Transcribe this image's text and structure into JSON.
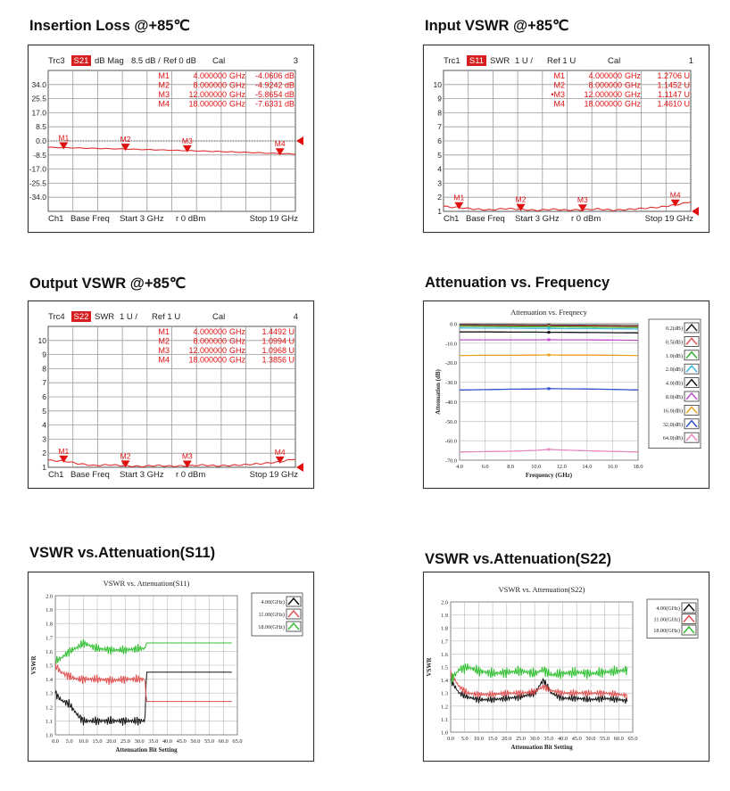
{
  "titles": {
    "insertion_loss": "Insertion Loss @+85℃",
    "input_vswr": "Input VSWR @+85℃",
    "output_vswr": "Output VSWR @+85℃",
    "attenuation": "Attenuation vs. Frequency",
    "vswr_s11": "VSWR vs.Attenuation(S11)",
    "vswr_s22": "VSWR vs.Attenuation(S22)"
  },
  "vna": {
    "il": {
      "trc": "Trc3",
      "param": "S21",
      "fmt": "dB Mag",
      "scale": "8.5 dB /",
      "ref": "Ref 0 dB",
      "cal": "Cal",
      "num": "3",
      "yticks": [
        "34.0",
        "25.5",
        "17.0",
        "8.5",
        "0.0",
        "-8.5",
        "-17.0",
        "-25.5",
        "-34.0"
      ],
      "markers": [
        {
          "name": "M1",
          "freq": "4.000000",
          "unit": "GHz",
          "val": "-4.0606 dB"
        },
        {
          "name": "M2",
          "freq": "8.000000",
          "unit": "GHz",
          "val": "-4.9242 dB"
        },
        {
          "name": "M3",
          "freq": "12.000000",
          "unit": "GHz",
          "val": "-5.8654 dB"
        },
        {
          "name": "M4",
          "freq": "18.000000",
          "unit": "GHz",
          "val": "-7.6331 dB"
        }
      ],
      "footer": {
        "ch": "Ch1",
        "base": "Base Freq",
        "start": "Start  3 GHz",
        "pwr": "r   0 dBm",
        "stop": "Stop  19 GHz"
      }
    },
    "in": {
      "trc": "Trc1",
      "param": "S11",
      "fmt": "SWR",
      "scale": "1 U /",
      "ref": "Ref 1 U",
      "cal": "Cal",
      "num": "1",
      "yticks": [
        "10",
        "9",
        "8",
        "7",
        "6",
        "5",
        "4",
        "3",
        "2",
        "1"
      ],
      "markers": [
        {
          "name": "M1",
          "freq": "4.000000",
          "unit": "GHz",
          "val": "1.2706  U"
        },
        {
          "name": "M2",
          "freq": "8.000000",
          "unit": "GHz",
          "val": "1.1452  U"
        },
        {
          "name": "•M3",
          "freq": "12.000000",
          "unit": "GHz",
          "val": "1.1147  U"
        },
        {
          "name": "M4",
          "freq": "18.000000",
          "unit": "GHz",
          "val": "1.4610  U"
        }
      ],
      "footer": {
        "ch": "Ch1",
        "base": "Base Freq",
        "start": "Start  3 GHz",
        "pwr": "r   0 dBm",
        "stop": "Stop  19 GHz"
      }
    },
    "out": {
      "trc": "Trc4",
      "param": "S22",
      "fmt": "SWR",
      "scale": "1 U /",
      "ref": "Ref 1 U",
      "cal": "Cal",
      "num": "4",
      "yticks": [
        "10",
        "9",
        "8",
        "7",
        "6",
        "5",
        "4",
        "3",
        "2",
        "1"
      ],
      "markers": [
        {
          "name": "M1",
          "freq": "4.000000",
          "unit": "GHz",
          "val": "1.4492  U"
        },
        {
          "name": "M2",
          "freq": "8.000000",
          "unit": "GHz",
          "val": "1.0994  U"
        },
        {
          "name": "M3",
          "freq": "12.000000",
          "unit": "GHz",
          "val": "1.0968  U"
        },
        {
          "name": "M4",
          "freq": "18.000000",
          "unit": "GHz",
          "val": "1.3856  U"
        }
      ],
      "footer": {
        "ch": "Ch1",
        "base": "Base Freq",
        "start": "Start  3 GHz",
        "pwr": "r   0 dBm",
        "stop": "Stop  19 GHz"
      }
    }
  },
  "colors": {
    "trace": "#e03030",
    "grid": "#9a9a9a",
    "marker": "#e01010"
  },
  "chart_data": [
    {
      "type": "line",
      "id": "il",
      "title": "",
      "xlabel": "",
      "ylabel": "",
      "xlim": [
        3,
        19
      ],
      "ylim": [
        -42.5,
        42.5
      ],
      "grid": true,
      "series": [
        {
          "x": [
            3,
            4,
            6,
            8,
            10,
            12,
            14,
            16,
            18,
            19
          ],
          "values": [
            -3.9,
            -4.06,
            -4.5,
            -4.92,
            -5.4,
            -5.87,
            -6.4,
            -7.0,
            -7.63,
            -7.9
          ]
        }
      ],
      "markers": [
        {
          "x": 4,
          "y": -4.0606
        },
        {
          "x": 8,
          "y": -4.9242
        },
        {
          "x": 12,
          "y": -5.8654
        },
        {
          "x": 18,
          "y": -7.6331
        }
      ]
    },
    {
      "type": "line",
      "id": "in",
      "title": "",
      "xlabel": "",
      "ylabel": "",
      "xlim": [
        3,
        19
      ],
      "ylim": [
        1,
        11
      ],
      "grid": true,
      "series": [
        {
          "x": [
            3,
            3.5,
            4,
            5,
            6,
            7,
            8,
            9,
            10,
            11,
            12,
            13,
            14,
            15,
            16,
            17,
            18,
            18.5,
            19
          ],
          "values": [
            1.35,
            1.3,
            1.27,
            1.16,
            1.1,
            1.2,
            1.15,
            1.07,
            1.15,
            1.09,
            1.11,
            1.17,
            1.08,
            1.14,
            1.22,
            1.3,
            1.46,
            1.55,
            1.7
          ]
        }
      ],
      "markers": [
        {
          "x": 4,
          "y": 1.2706
        },
        {
          "x": 8,
          "y": 1.1452
        },
        {
          "x": 12,
          "y": 1.1147
        },
        {
          "x": 18,
          "y": 1.461
        }
      ]
    },
    {
      "type": "line",
      "id": "out",
      "title": "",
      "xlabel": "",
      "ylabel": "",
      "xlim": [
        3,
        19
      ],
      "ylim": [
        1,
        11
      ],
      "grid": true,
      "series": [
        {
          "x": [
            3,
            3.5,
            4,
            5,
            6,
            7,
            8,
            9,
            10,
            11,
            12,
            13,
            14,
            15,
            16,
            17,
            18,
            18.5,
            19
          ],
          "values": [
            1.5,
            1.46,
            1.45,
            1.25,
            1.12,
            1.18,
            1.1,
            1.06,
            1.13,
            1.08,
            1.1,
            1.16,
            1.1,
            1.14,
            1.2,
            1.28,
            1.39,
            1.5,
            1.6
          ]
        }
      ],
      "markers": [
        {
          "x": 4,
          "y": 1.4492
        },
        {
          "x": 8,
          "y": 1.0994
        },
        {
          "x": 12,
          "y": 1.0968
        },
        {
          "x": 18,
          "y": 1.3856
        }
      ]
    },
    {
      "type": "line",
      "id": "atten",
      "title": "Attenuation vs. Freqnecy",
      "xlabel": "Frequency (GHz)",
      "ylabel": "Attenuation (dB)",
      "xlim": [
        4,
        18
      ],
      "ylim": [
        -70,
        0
      ],
      "grid": true,
      "xticks": [
        "4.0",
        "6.0",
        "8.0",
        "10.0",
        "12.0",
        "14.0",
        "16.0",
        "18.0"
      ],
      "yticks": [
        "0.0",
        "-10.0",
        "-20.0",
        "-30.0",
        "-40.0",
        "-50.0",
        "-60.0",
        "-70.0"
      ],
      "x": [
        4,
        6,
        8,
        10,
        11,
        12,
        14,
        16,
        18
      ],
      "series": [
        {
          "name": "0.2(dB)",
          "color": "#222222",
          "values": [
            -0.5,
            -0.6,
            -0.6,
            -0.7,
            -0.7,
            -0.8,
            -0.8,
            -0.9,
            -1.0
          ]
        },
        {
          "name": "0.5(dB)",
          "color": "#e05050",
          "values": [
            -0.9,
            -1.0,
            -1.0,
            -1.1,
            -1.1,
            -1.2,
            -1.2,
            -1.3,
            -1.4
          ]
        },
        {
          "name": "1.0(dB)",
          "color": "#30b030",
          "values": [
            -1.3,
            -1.4,
            -1.5,
            -1.5,
            -1.6,
            -1.6,
            -1.7,
            -1.8,
            -1.9
          ]
        },
        {
          "name": "2.0(dB)",
          "color": "#40b8e0",
          "values": [
            -2.2,
            -2.3,
            -2.3,
            -2.4,
            -2.4,
            -2.5,
            -2.5,
            -2.6,
            -2.7
          ]
        },
        {
          "name": "4.0(dB)",
          "color": "#111111",
          "values": [
            -4.2,
            -4.2,
            -4.3,
            -4.3,
            -4.4,
            -4.4,
            -4.5,
            -4.6,
            -4.7
          ]
        },
        {
          "name": "8.0(dB)",
          "color": "#c050d0",
          "values": [
            -8.3,
            -8.3,
            -8.3,
            -8.3,
            -8.2,
            -8.3,
            -8.3,
            -8.4,
            -8.5
          ]
        },
        {
          "name": "16.0(dB)",
          "color": "#e8a020",
          "values": [
            -16.3,
            -16.2,
            -16.2,
            -16.1,
            -16.0,
            -16.1,
            -16.1,
            -16.2,
            -16.3
          ]
        },
        {
          "name": "32.0(dB)",
          "color": "#3050d0",
          "values": [
            -34.0,
            -33.8,
            -33.6,
            -33.5,
            -33.3,
            -33.4,
            -33.5,
            -33.7,
            -34.0
          ]
        },
        {
          "name": "64.0(dB)",
          "color": "#e888c0",
          "values": [
            -65.8,
            -65.6,
            -65.4,
            -65.0,
            -64.5,
            -64.8,
            -65.2,
            -65.5,
            -65.8
          ]
        }
      ]
    },
    {
      "type": "line",
      "id": "s11",
      "title": "VSWR vs. Attenuation(S11)",
      "xlabel": "Attenuation Bit Setting",
      "ylabel": "VSWR",
      "xlim": [
        0,
        65
      ],
      "ylim": [
        1.0,
        2.0
      ],
      "grid": true,
      "xticks": [
        "0.0",
        "5.0",
        "10.0",
        "15.0",
        "20.0",
        "25.0",
        "30.0",
        "35.0",
        "40.0",
        "45.0",
        "50.0",
        "55.0",
        "60.0",
        "65.0"
      ],
      "yticks": [
        "2.0",
        "1.9",
        "1.8",
        "1.7",
        "1.6",
        "1.5",
        "1.4",
        "1.3",
        "1.2",
        "1.1",
        "1.0"
      ],
      "series": [
        {
          "name": "4.00(GHz)",
          "color": "#111111",
          "x": [
            0,
            2,
            5,
            8,
            10,
            15,
            20,
            25,
            30,
            32,
            32.5,
            40,
            50,
            63
          ],
          "values": [
            1.3,
            1.25,
            1.22,
            1.14,
            1.1,
            1.1,
            1.1,
            1.1,
            1.1,
            1.1,
            1.45,
            1.45,
            1.45,
            1.45
          ]
        },
        {
          "name": "11.00(GHz)",
          "color": "#e05050",
          "x": [
            0,
            2,
            5,
            8,
            10,
            15,
            20,
            25,
            30,
            32,
            32.5,
            40,
            50,
            63
          ],
          "values": [
            1.5,
            1.45,
            1.42,
            1.4,
            1.4,
            1.4,
            1.39,
            1.4,
            1.4,
            1.4,
            1.24,
            1.24,
            1.24,
            1.24
          ]
        },
        {
          "name": "18.00(GHz)",
          "color": "#30c030",
          "x": [
            0,
            2,
            5,
            8,
            10,
            15,
            20,
            25,
            30,
            32,
            32.5,
            40,
            50,
            63
          ],
          "values": [
            1.53,
            1.55,
            1.6,
            1.63,
            1.66,
            1.62,
            1.61,
            1.61,
            1.62,
            1.62,
            1.66,
            1.66,
            1.66,
            1.66
          ]
        }
      ]
    },
    {
      "type": "line",
      "id": "s22",
      "title": "VSWR vs. Attenuation(S22)",
      "xlabel": "Attenuation Bit Setting",
      "ylabel": "VSWR",
      "xlim": [
        0,
        65
      ],
      "ylim": [
        1.0,
        2.0
      ],
      "grid": true,
      "xticks": [
        "0.0",
        "5.0",
        "10.0",
        "15.0",
        "20.0",
        "25.0",
        "30.0",
        "35.0",
        "40.0",
        "45.0",
        "50.0",
        "55.0",
        "60.0",
        "65.0"
      ],
      "yticks": [
        "2.0",
        "1.9",
        "1.8",
        "1.7",
        "1.6",
        "1.5",
        "1.4",
        "1.3",
        "1.2",
        "1.1",
        "1.0"
      ],
      "series": [
        {
          "name": "4.00(GHz)",
          "color": "#111111",
          "x": [
            0,
            3,
            6,
            10,
            15,
            20,
            25,
            30,
            33,
            36,
            40,
            45,
            50,
            55,
            60,
            63
          ],
          "values": [
            1.4,
            1.3,
            1.27,
            1.25,
            1.25,
            1.26,
            1.27,
            1.3,
            1.4,
            1.3,
            1.26,
            1.26,
            1.25,
            1.26,
            1.25,
            1.24
          ]
        },
        {
          "name": "11.00(GHz)",
          "color": "#e05050",
          "x": [
            0,
            3,
            6,
            10,
            15,
            20,
            25,
            30,
            33,
            36,
            40,
            45,
            50,
            55,
            60,
            63
          ],
          "values": [
            1.45,
            1.35,
            1.3,
            1.29,
            1.29,
            1.3,
            1.3,
            1.31,
            1.35,
            1.32,
            1.3,
            1.3,
            1.3,
            1.3,
            1.29,
            1.28
          ]
        },
        {
          "name": "18.00(GHz)",
          "color": "#30c030",
          "x": [
            0,
            3,
            6,
            10,
            15,
            20,
            25,
            30,
            33,
            36,
            40,
            45,
            50,
            55,
            60,
            63
          ],
          "values": [
            1.4,
            1.48,
            1.5,
            1.47,
            1.45,
            1.46,
            1.47,
            1.45,
            1.48,
            1.44,
            1.45,
            1.46,
            1.45,
            1.46,
            1.47,
            1.48
          ]
        }
      ]
    }
  ]
}
